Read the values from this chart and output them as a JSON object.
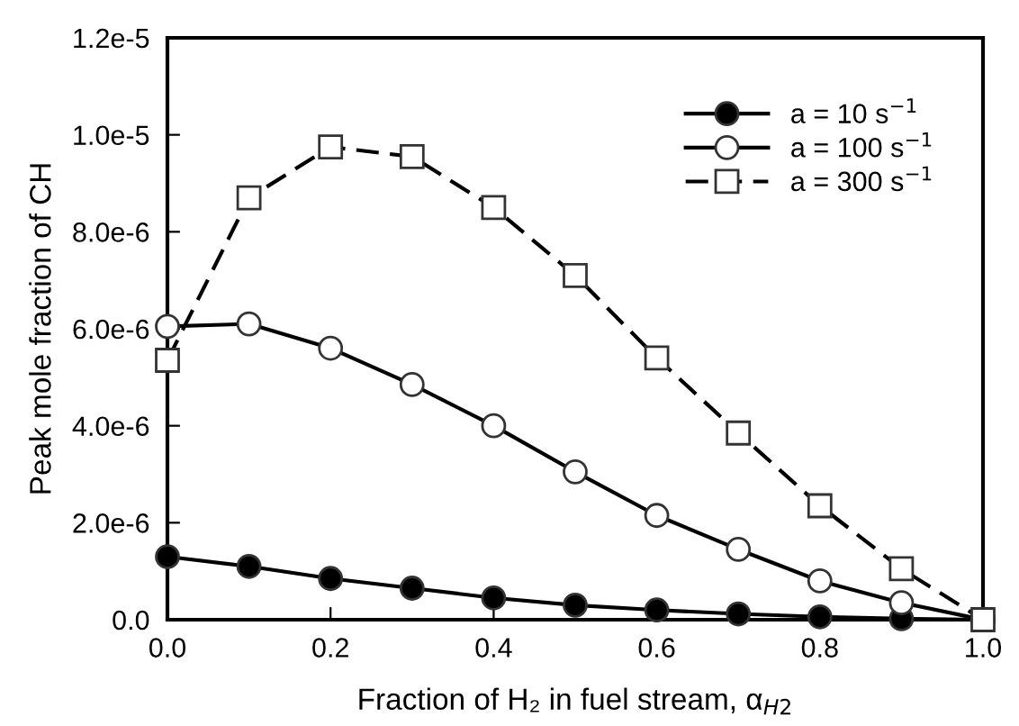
{
  "chart_data": {
    "type": "line",
    "xlabel": "Fraction of H₂ in fuel stream, α$_{H2}$",
    "ylabel": "Peak mole fraction of CH",
    "x": [
      0.0,
      0.1,
      0.2,
      0.3,
      0.4,
      0.5,
      0.6,
      0.7,
      0.8,
      0.9,
      1.0
    ],
    "series": [
      {
        "name": "a = 10 s$^{−1}$",
        "color": "#000000",
        "marker": "circle",
        "line_style": "solid",
        "values": [
          1.3e-06,
          1.1e-06,
          8.5e-07,
          6.5e-07,
          4.5e-07,
          3e-07,
          2e-07,
          1.2e-07,
          6e-08,
          2e-08,
          0.0
        ]
      },
      {
        "name": "a = 100 s$^{−1}$",
        "color": "#ffffff",
        "marker": "circle",
        "line_style": "solid",
        "values": [
          6.05e-06,
          6.1e-06,
          5.6e-06,
          4.85e-06,
          4e-06,
          3.05e-06,
          2.15e-06,
          1.45e-06,
          8e-07,
          3.5e-07,
          0.0
        ]
      },
      {
        "name": "a = 300 s$^{−1}$",
        "color": "#ffffff",
        "marker": "square",
        "line_style": "dashed",
        "values": [
          5.35e-06,
          8.7e-06,
          9.75e-06,
          9.55e-06,
          8.5e-06,
          7.1e-06,
          5.4e-06,
          3.85e-06,
          2.35e-06,
          1.05e-06,
          0.0
        ]
      }
    ],
    "xlim": [
      0.0,
      1.0
    ],
    "ylim": [
      0.0,
      1.2e-05
    ],
    "xticks": [
      {
        "value": 0.0,
        "label": "0.0"
      },
      0.2,
      0.4,
      0.6,
      0.8,
      {
        "value": 1.0,
        "label": "1.0"
      }
    ],
    "yticks": [
      {
        "value": 0.0,
        "label": "0.0"
      },
      {
        "value": 2e-06,
        "label": "2.0e-6"
      },
      {
        "value": 4e-06,
        "label": "4.0e-6"
      },
      {
        "value": 6e-06,
        "label": "6.0e-6"
      },
      {
        "value": 8e-06,
        "label": "8.0e-6"
      },
      {
        "value": 1e-05,
        "label": "1.0e-5"
      },
      {
        "value": 1.2e-05,
        "label": "1.2e-5"
      }
    ],
    "grid": false,
    "legend": "top right"
  }
}
